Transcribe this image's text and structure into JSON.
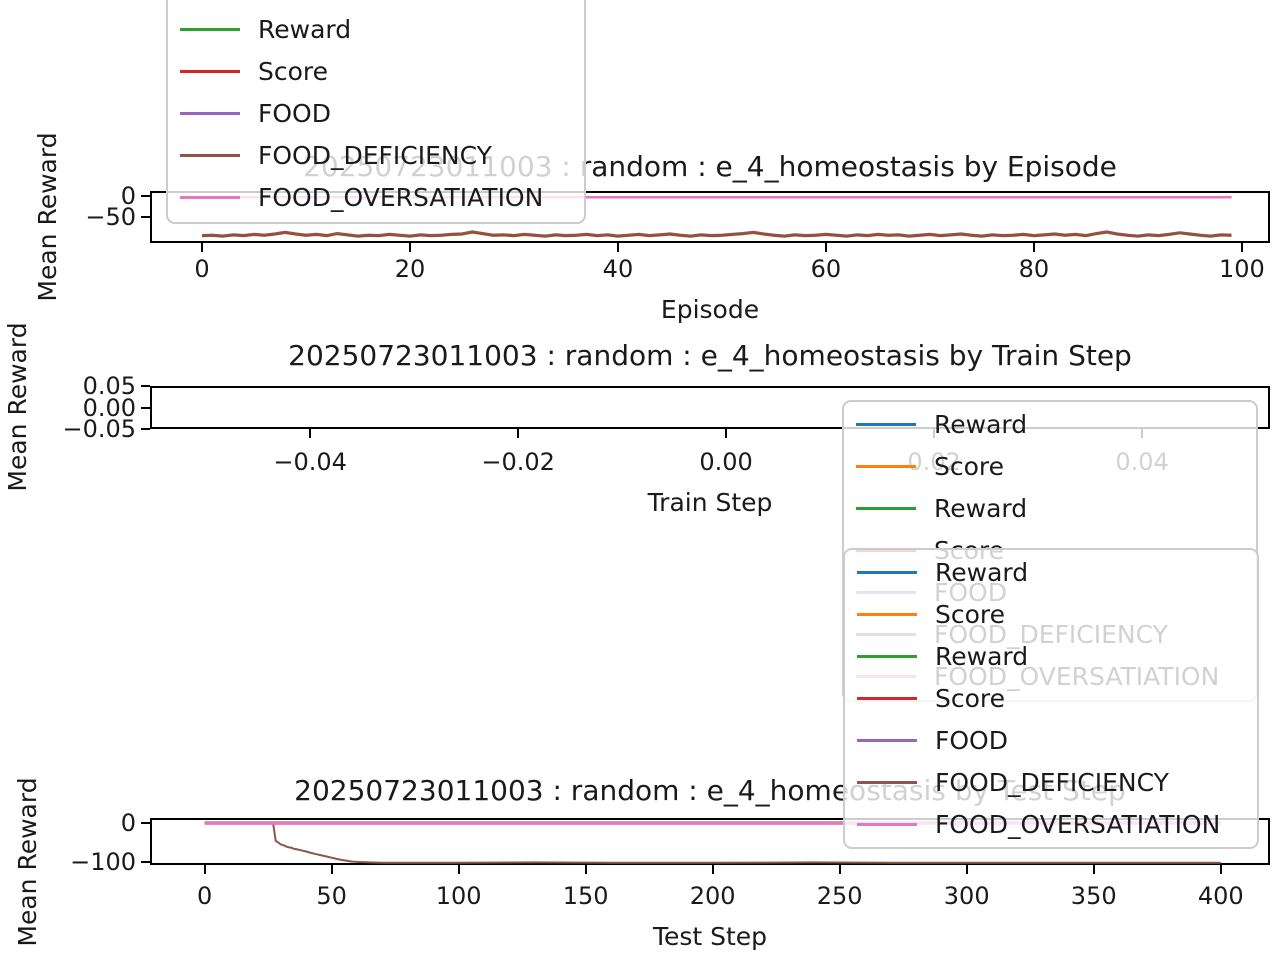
{
  "figure": {
    "background": "#ffffff"
  },
  "colors": {
    "blue": "#1f77b4",
    "orange": "#ff7f0e",
    "green": "#2ca02c",
    "red": "#d62728",
    "purple": "#9467bd",
    "brown": "#8c564b",
    "pink": "#e377c2",
    "spine": "#000000",
    "legend_border": "#cccccc",
    "text": "#1a1a1a"
  },
  "legends": {
    "episode": {
      "entries": [
        {
          "label": "Reward",
          "color": "green"
        },
        {
          "label": "Score",
          "color": "red"
        },
        {
          "label": "FOOD",
          "color": "purple"
        },
        {
          "label": "FOOD_DEFICIENCY",
          "color": "brown"
        },
        {
          "label": "FOOD_OVERSATIATION",
          "color": "pink"
        }
      ]
    },
    "train": {
      "entries": [
        {
          "label": "Reward",
          "color": "blue"
        },
        {
          "label": "Score",
          "color": "orange"
        },
        {
          "label": "Reward",
          "color": "green"
        },
        {
          "label": "Score",
          "color": "red"
        },
        {
          "label": "FOOD",
          "color": "purple"
        },
        {
          "label": "FOOD_DEFICIENCY",
          "color": "brown"
        },
        {
          "label": "FOOD_OVERSATIATION",
          "color": "pink"
        }
      ]
    },
    "test": {
      "entries": [
        {
          "label": "Reward",
          "color": "blue"
        },
        {
          "label": "Score",
          "color": "orange"
        },
        {
          "label": "Reward",
          "color": "green"
        },
        {
          "label": "Score",
          "color": "red"
        },
        {
          "label": "FOOD",
          "color": "purple"
        },
        {
          "label": "FOOD_DEFICIENCY",
          "color": "brown"
        },
        {
          "label": "FOOD_OVERSATIATION",
          "color": "pink"
        }
      ]
    }
  },
  "chart_data": [
    {
      "type": "line",
      "title": "20250723011003 : random : e_4_homeostasis by Episode",
      "xlabel": "Episode",
      "ylabel": "Mean Reward",
      "xlim": [
        -5.0,
        102.7
      ],
      "ylim": [
        -113.4,
        13.4
      ],
      "xticks": {
        "values": [
          0,
          20,
          40,
          60,
          80,
          100
        ],
        "labels": [
          "0",
          "20",
          "40",
          "60",
          "80",
          "100"
        ]
      },
      "yticks": {
        "values": [
          0,
          -50
        ],
        "labels": [
          "0",
          "−50"
        ]
      },
      "x_start": 0,
      "x_step": 1,
      "series": [
        {
          "name": "Reward",
          "color": "green",
          "y_from": "FOOD_DEFICIENCY",
          "y_offset": -3
        },
        {
          "name": "Score",
          "color": "red",
          "y_from": "FOOD_DEFICIENCY",
          "y_offset": -2
        },
        {
          "name": "FOOD",
          "color": "purple",
          "y_const": -2.5,
          "x_range": [
            0,
            99
          ]
        },
        {
          "name": "FOOD_DEFICIENCY",
          "color": "brown",
          "y": [
            -94,
            -93,
            -95,
            -92,
            -94,
            -91,
            -93,
            -90,
            -86,
            -90,
            -93,
            -91,
            -94,
            -89,
            -92,
            -95,
            -93,
            -94,
            -91,
            -93,
            -95,
            -92,
            -94,
            -93,
            -91,
            -90,
            -85,
            -89,
            -93,
            -92,
            -94,
            -91,
            -93,
            -95,
            -92,
            -94,
            -93,
            -91,
            -94,
            -92,
            -95,
            -93,
            -91,
            -94,
            -92,
            -90,
            -93,
            -95,
            -92,
            -94,
            -93,
            -91,
            -89,
            -86,
            -90,
            -93,
            -95,
            -92,
            -94,
            -93,
            -91,
            -93,
            -95,
            -92,
            -94,
            -91,
            -93,
            -92,
            -95,
            -93,
            -91,
            -94,
            -92,
            -90,
            -93,
            -95,
            -92,
            -94,
            -93,
            -91,
            -94,
            -92,
            -90,
            -93,
            -91,
            -94,
            -89,
            -85,
            -90,
            -93,
            -95,
            -92,
            -94,
            -91,
            -87,
            -90,
            -93,
            -95,
            -92,
            -93
          ]
        },
        {
          "name": "FOOD_OVERSATIATION",
          "color": "pink",
          "y_const": -2,
          "x_range": [
            0,
            99
          ],
          "lw": 2.5
        }
      ]
    },
    {
      "type": "line",
      "title": "20250723011003 : random : e_4_homeostasis by Train Step",
      "xlabel": "Train Step",
      "ylabel": "Mean Reward",
      "xlim": [
        -0.0554,
        0.0523
      ],
      "ylim": [
        -0.05,
        0.05
      ],
      "xticks": {
        "values": [
          -0.04,
          -0.02,
          0,
          0.02,
          0.04
        ],
        "labels": [
          "−0.04",
          "−0.02",
          "0.00",
          "0.02",
          "0.04"
        ]
      },
      "yticks": {
        "values": [
          0.05,
          0,
          -0.05
        ],
        "labels": [
          "0.05",
          "0.00",
          "−0.05"
        ]
      },
      "series": []
    },
    {
      "type": "line",
      "title": "20250723011003 : random : e_4_homeostasis by Test Step",
      "xlabel": "Test Step",
      "ylabel": "Mean Reward",
      "xlim": [
        -21.5,
        419.4
      ],
      "ylim": [
        -107.7,
        12.8
      ],
      "xticks": {
        "values": [
          0,
          50,
          100,
          150,
          200,
          250,
          300,
          350,
          400
        ],
        "labels": [
          "0",
          "50",
          "100",
          "150",
          "200",
          "250",
          "300",
          "350",
          "400"
        ]
      },
      "yticks": {
        "values": [
          0,
          -100
        ],
        "labels": [
          "0",
          "−100"
        ]
      },
      "series": [
        {
          "name": "Reward",
          "color": "blue",
          "y_const": 1.5,
          "x_range": [
            0,
            400
          ]
        },
        {
          "name": "Score",
          "color": "orange",
          "y_const": 0.8,
          "x_range": [
            0,
            400
          ]
        },
        {
          "name": "Reward",
          "color": "green",
          "y_const": 0.2,
          "x_range": [
            0,
            400
          ]
        },
        {
          "name": "Score",
          "color": "red",
          "y_const": -0.5,
          "x_range": [
            0,
            400
          ]
        },
        {
          "name": "FOOD",
          "color": "purple",
          "y_const": -1.4,
          "x_range": [
            0,
            400
          ]
        },
        {
          "name": "FOOD_DEFICIENCY",
          "color": "brown",
          "points": [
            [
              0,
              -1
            ],
            [
              6,
              -1
            ],
            [
              12,
              -1
            ],
            [
              18,
              -1
            ],
            [
              24,
              -1
            ],
            [
              26,
              -1
            ],
            [
              27,
              -2
            ],
            [
              28,
              -46
            ],
            [
              29,
              -50
            ],
            [
              30,
              -55
            ],
            [
              31,
              -57
            ],
            [
              32,
              -60
            ],
            [
              33,
              -62
            ],
            [
              34,
              -63
            ],
            [
              35,
              -66
            ],
            [
              36,
              -67
            ],
            [
              38,
              -70
            ],
            [
              40,
              -73
            ],
            [
              42,
              -77
            ],
            [
              44,
              -80
            ],
            [
              46,
              -83
            ],
            [
              48,
              -86
            ],
            [
              50,
              -89
            ],
            [
              52,
              -92
            ],
            [
              54,
              -95
            ],
            [
              56,
              -97
            ],
            [
              58,
              -99
            ],
            [
              61,
              -100
            ],
            [
              65,
              -101
            ],
            [
              70,
              -102
            ],
            [
              80,
              -102
            ],
            [
              100,
              -102
            ],
            [
              130,
              -101
            ],
            [
              160,
              -102
            ],
            [
              200,
              -102
            ],
            [
              240,
              -101
            ],
            [
              280,
              -102
            ],
            [
              320,
              -102
            ],
            [
              360,
              -102
            ],
            [
              400,
              -102
            ]
          ]
        },
        {
          "name": "FOOD_OVERSATIATION",
          "color": "pink",
          "y_const": -1,
          "x_range": [
            0,
            400
          ],
          "lw": 3
        }
      ]
    }
  ]
}
